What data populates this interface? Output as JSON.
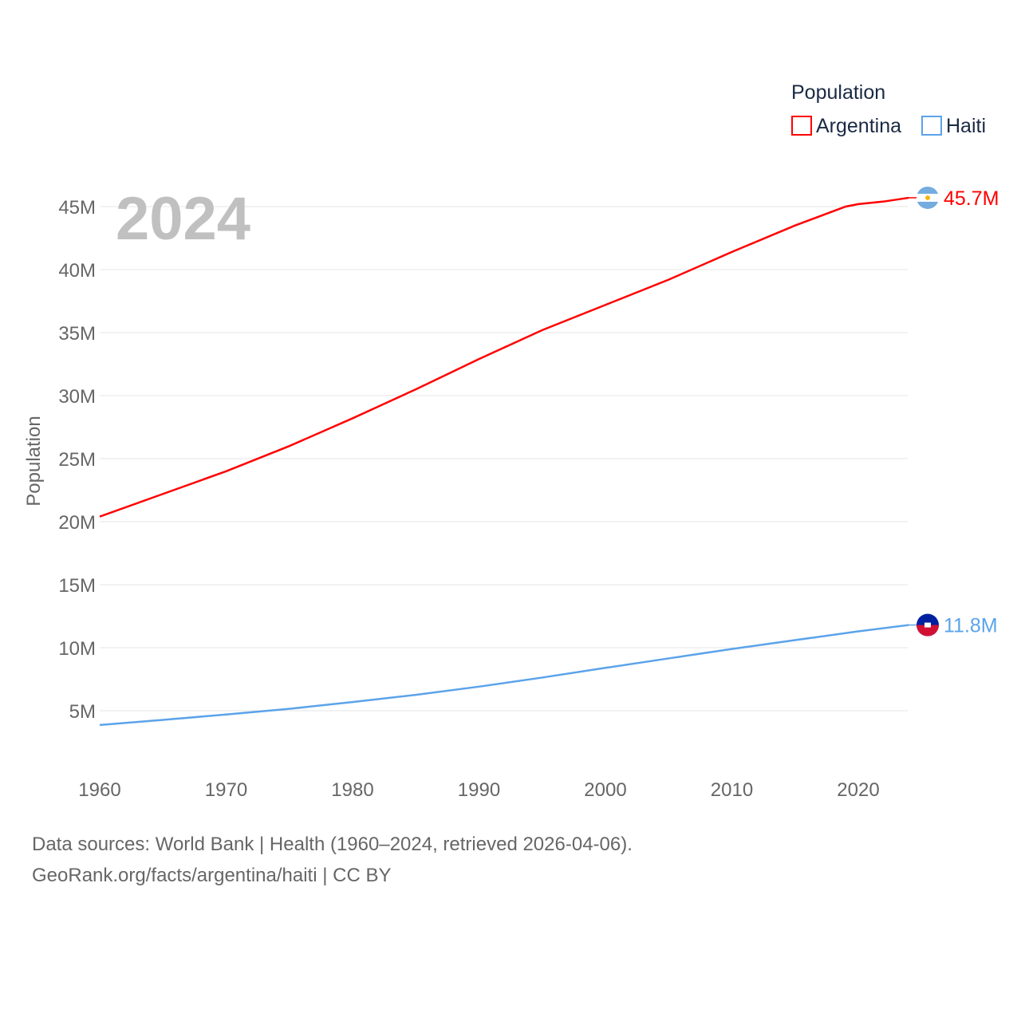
{
  "chart_data": {
    "type": "line",
    "title": "Population",
    "year_label": "2024",
    "ylabel": "Population",
    "xlabel": "",
    "ylim": [
      0,
      47
    ],
    "xlim": [
      1960,
      2024
    ],
    "yticks": [
      5,
      10,
      15,
      20,
      25,
      30,
      35,
      40,
      45
    ],
    "ytick_labels": [
      "5M",
      "10M",
      "15M",
      "20M",
      "25M",
      "30M",
      "35M",
      "40M",
      "45M"
    ],
    "xticks": [
      1960,
      1970,
      1980,
      1990,
      2000,
      2010,
      2020
    ],
    "xtick_labels": [
      "1960",
      "1970",
      "1980",
      "1990",
      "2000",
      "2010",
      "2020"
    ],
    "grid": true,
    "legend": {
      "title": "Population",
      "placement": "top-right"
    },
    "series": [
      {
        "name": "Argentina",
        "color": "#ff0000",
        "end_label": "45.7M",
        "x": [
          1960,
          1965,
          1970,
          1975,
          1980,
          1985,
          1990,
          1995,
          2000,
          2005,
          2010,
          2015,
          2019,
          2020,
          2022,
          2024
        ],
        "values": [
          20.4,
          22.2,
          24.0,
          26.0,
          28.2,
          30.5,
          32.9,
          35.2,
          37.2,
          39.2,
          41.4,
          43.5,
          45.0,
          45.2,
          45.4,
          45.7
        ]
      },
      {
        "name": "Haiti",
        "color": "#5ba3ea",
        "end_label": "11.8M",
        "x": [
          1960,
          1965,
          1970,
          1975,
          1980,
          1985,
          1990,
          1995,
          2000,
          2005,
          2010,
          2015,
          2020,
          2024
        ],
        "values": [
          3.87,
          4.27,
          4.7,
          5.15,
          5.69,
          6.26,
          6.91,
          7.63,
          8.4,
          9.15,
          9.9,
          10.6,
          11.3,
          11.8
        ]
      }
    ]
  },
  "footer": {
    "line1": "Data sources: World Bank | Health (1960–2024, retrieved 2026-04-06).",
    "line2": "GeoRank.org/facts/argentina/haiti | CC BY"
  }
}
